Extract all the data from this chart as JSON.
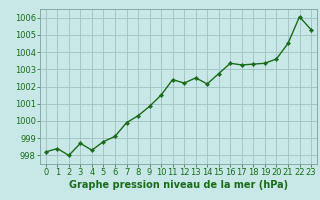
{
  "x": [
    0,
    1,
    2,
    3,
    4,
    5,
    6,
    7,
    8,
    9,
    10,
    11,
    12,
    13,
    14,
    15,
    16,
    17,
    18,
    19,
    20,
    21,
    22,
    23
  ],
  "y": [
    998.2,
    998.4,
    998.0,
    998.7,
    998.3,
    998.8,
    999.1,
    999.9,
    1000.3,
    1000.85,
    1001.5,
    1002.4,
    1002.2,
    1002.5,
    1002.15,
    1002.75,
    1003.35,
    1003.25,
    1003.3,
    1003.35,
    1003.6,
    1004.5,
    1006.05,
    1005.3
  ],
  "line_color": "#1a6b1a",
  "marker": "D",
  "marker_size": 2.2,
  "background_color": "#c8e8e8",
  "grid_color": "#a0c0c0",
  "xlabel": "Graphe pression niveau de la mer (hPa)",
  "ylim": [
    997.5,
    1006.5
  ],
  "xlim": [
    -0.5,
    23.5
  ],
  "yticks": [
    998,
    999,
    1000,
    1001,
    1002,
    1003,
    1004,
    1005,
    1006
  ],
  "xticks": [
    0,
    1,
    2,
    3,
    4,
    5,
    6,
    7,
    8,
    9,
    10,
    11,
    12,
    13,
    14,
    15,
    16,
    17,
    18,
    19,
    20,
    21,
    22,
    23
  ],
  "xlabel_fontsize": 7,
  "tick_fontsize": 6,
  "xlabel_color": "#1a6b1a",
  "tick_color": "#1a6b1a",
  "line_width": 1.0,
  "spine_color": "#80a0a0"
}
